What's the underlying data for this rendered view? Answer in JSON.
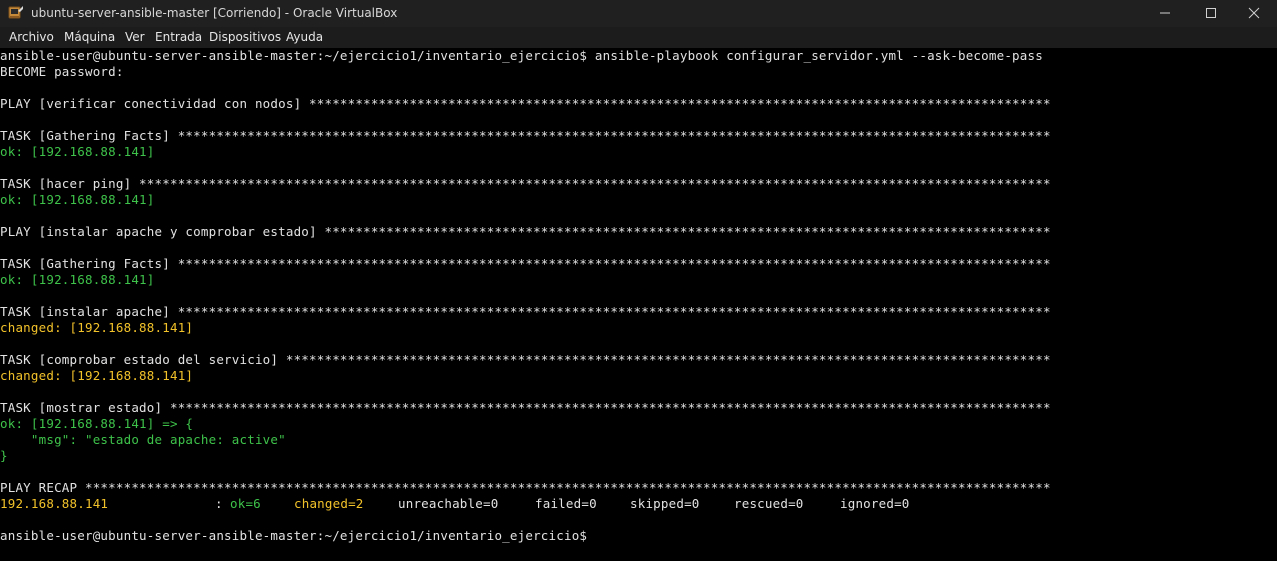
{
  "window": {
    "title": "ubuntu-server-ansible-master [Corriendo] - Oracle VirtualBox",
    "controls": {
      "minimize": "minimize-icon",
      "maximize": "maximize-icon",
      "close": "close-icon"
    },
    "colors": {
      "titlebar": "#202020",
      "menubar": "#1c1c1c",
      "terminal_bg": "#000000"
    }
  },
  "menubar": {
    "items": [
      "Archivo",
      "Máquina",
      "Ver",
      "Entrada",
      "Dispositivos",
      "Ayuda"
    ]
  },
  "terminal": {
    "colors": {
      "default": "#e2e2e2",
      "ok": "#3ec24a",
      "changed": "#f2c22a"
    },
    "lines": [
      "ansible-user@ubuntu-server-ansible-master:~/ejercicio1/inventario_ejercicio$ ansible-playbook configurar_servidor.yml --ask-become-pass",
      "BECOME password:",
      "",
      "PLAY [verificar conectividad con nodos] ************************************************************************************************",
      "",
      "TASK [Gathering Facts] *****************************************************************************************************************",
      "ok: [192.168.88.141]",
      "",
      "TASK [hacer ping] **********************************************************************************************************************",
      "ok: [192.168.88.141]",
      "",
      "PLAY [instalar apache y comprobar estado] **********************************************************************************************",
      "",
      "TASK [Gathering Facts] *****************************************************************************************************************",
      "ok: [192.168.88.141]",
      "",
      "TASK [instalar apache] *****************************************************************************************************************",
      "changed: [192.168.88.141]",
      "",
      "TASK [comprobar estado del servicio] ***************************************************************************************************",
      "changed: [192.168.88.141]",
      "",
      "TASK [mostrar estado] ******************************************************************************************************************",
      "ok: [192.168.88.141] => {",
      "    \"msg\": \"estado de apache: active\"",
      "}",
      "",
      "PLAY RECAP *****************************************************************************************************************************"
    ],
    "recap": {
      "host": "192.168.88.141",
      "separator": ":",
      "ok": "ok=6",
      "changed": "changed=2",
      "unreachable": "unreachable=0",
      "failed": "failed=0",
      "skipped": "skipped=0",
      "rescued": "rescued=0",
      "ignored": "ignored=0"
    },
    "blank_after_recap": "",
    "final_prompt": "ansible-user@ubuntu-server-ansible-master:~/ejercicio1/inventario_ejercicio$"
  }
}
